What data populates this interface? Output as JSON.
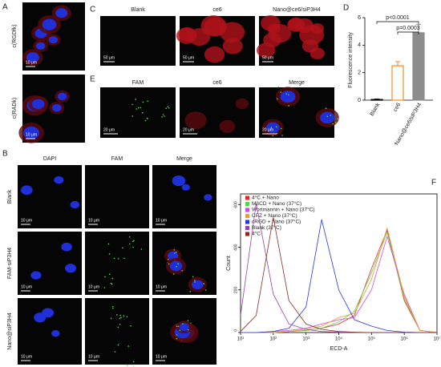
{
  "panels": {
    "A": {
      "label": "A",
      "rows": [
        "c(RGDfk)",
        "c(RADk)"
      ],
      "scale_bar": "10 μm"
    },
    "C": {
      "label": "C",
      "columns": [
        "Blank",
        "ce6",
        "Nano@ce6/siP3H4"
      ],
      "scale_bar": "50 μm"
    },
    "E": {
      "label": "E",
      "columns": [
        "FAM",
        "ce6",
        "Merge"
      ],
      "scale_bar": "20 μm"
    },
    "B": {
      "label": "B",
      "columns": [
        "DAPI",
        "FAM",
        "Merge"
      ],
      "rows": [
        "Blank",
        "FAM-siP3H4",
        "Nano@siP3H4"
      ],
      "scale_bar": "10 μm"
    },
    "D": {
      "label": "D"
    },
    "F": {
      "label": "F"
    }
  },
  "chart_data": [
    {
      "type": "bar",
      "categories": [
        "Blank",
        "ce6",
        "Nano@ce6/siP3H4"
      ],
      "values": [
        0.05,
        2.5,
        4.9
      ],
      "errors": [
        0.03,
        0.3,
        0.6
      ],
      "colors": [
        "#000000",
        "#f28c28",
        "#8c8c8c"
      ],
      "fill_colors": [
        "#ffffff",
        "#ffffff",
        "#8c8c8c"
      ],
      "ylabel": "Fluorescence intensity",
      "ylim": [
        0,
        6
      ],
      "yticks": [
        0,
        2,
        4,
        6
      ],
      "annotations": [
        "p<0.0001",
        "p=0.0003"
      ]
    },
    {
      "type": "line",
      "xscale": "log",
      "xlabel": "ECD-A",
      "ylabel": "Count",
      "xlim": [
        10,
        10000000
      ],
      "ylim": [
        0,
        650
      ],
      "xticks": [
        {
          "value": 10,
          "label": "10¹"
        },
        {
          "value": 100,
          "label": "10²"
        },
        {
          "value": 1000,
          "label": "10³"
        },
        {
          "value": 10000,
          "label": "10⁴"
        },
        {
          "value": 100000,
          "label": "10⁵"
        },
        {
          "value": 1000000,
          "label": "10⁶"
        },
        {
          "value": 10000000,
          "label": "10⁷"
        }
      ],
      "yticks": [
        0,
        200,
        400,
        600
      ],
      "legend": "top-left",
      "x": [
        10,
        30,
        100,
        300,
        1000,
        3000,
        10000,
        30000,
        100000,
        300000,
        1000000,
        3000000,
        10000000
      ],
      "series": [
        {
          "name": "4°C + Nano",
          "color": "#e8262a",
          "values": [
            0,
            0,
            0,
            5,
            10,
            20,
            40,
            80,
            300,
            480,
            150,
            10,
            0
          ]
        },
        {
          "name": "MβCD + Nano (37°C)",
          "color": "#5ad14a",
          "values": [
            0,
            0,
            0,
            5,
            10,
            20,
            50,
            100,
            280,
            470,
            160,
            10,
            0
          ]
        },
        {
          "name": "Wortmannin + Nano (37°C)",
          "color": "#d24bd8",
          "values": [
            0,
            0,
            5,
            10,
            20,
            40,
            60,
            70,
            200,
            450,
            180,
            10,
            0
          ]
        },
        {
          "name": "CPZ + Nano (37°C)",
          "color": "#f39a27",
          "values": [
            0,
            0,
            0,
            5,
            15,
            30,
            70,
            90,
            250,
            490,
            170,
            10,
            0
          ]
        },
        {
          "name": "cRGD + Nano (37°C)",
          "color": "#2436e0",
          "values": [
            0,
            0,
            5,
            20,
            120,
            530,
            200,
            60,
            30,
            10,
            2,
            0,
            0
          ]
        },
        {
          "name": "Blank (37°C)",
          "color": "#9a3ea8",
          "values": [
            80,
            605,
            180,
            40,
            15,
            5,
            2,
            0,
            0,
            0,
            0,
            0,
            0
          ]
        },
        {
          "name": "4°C",
          "color": "#8a2a1e",
          "values": [
            5,
            80,
            540,
            150,
            40,
            15,
            5,
            2,
            0,
            0,
            0,
            0,
            0
          ]
        }
      ]
    }
  ]
}
